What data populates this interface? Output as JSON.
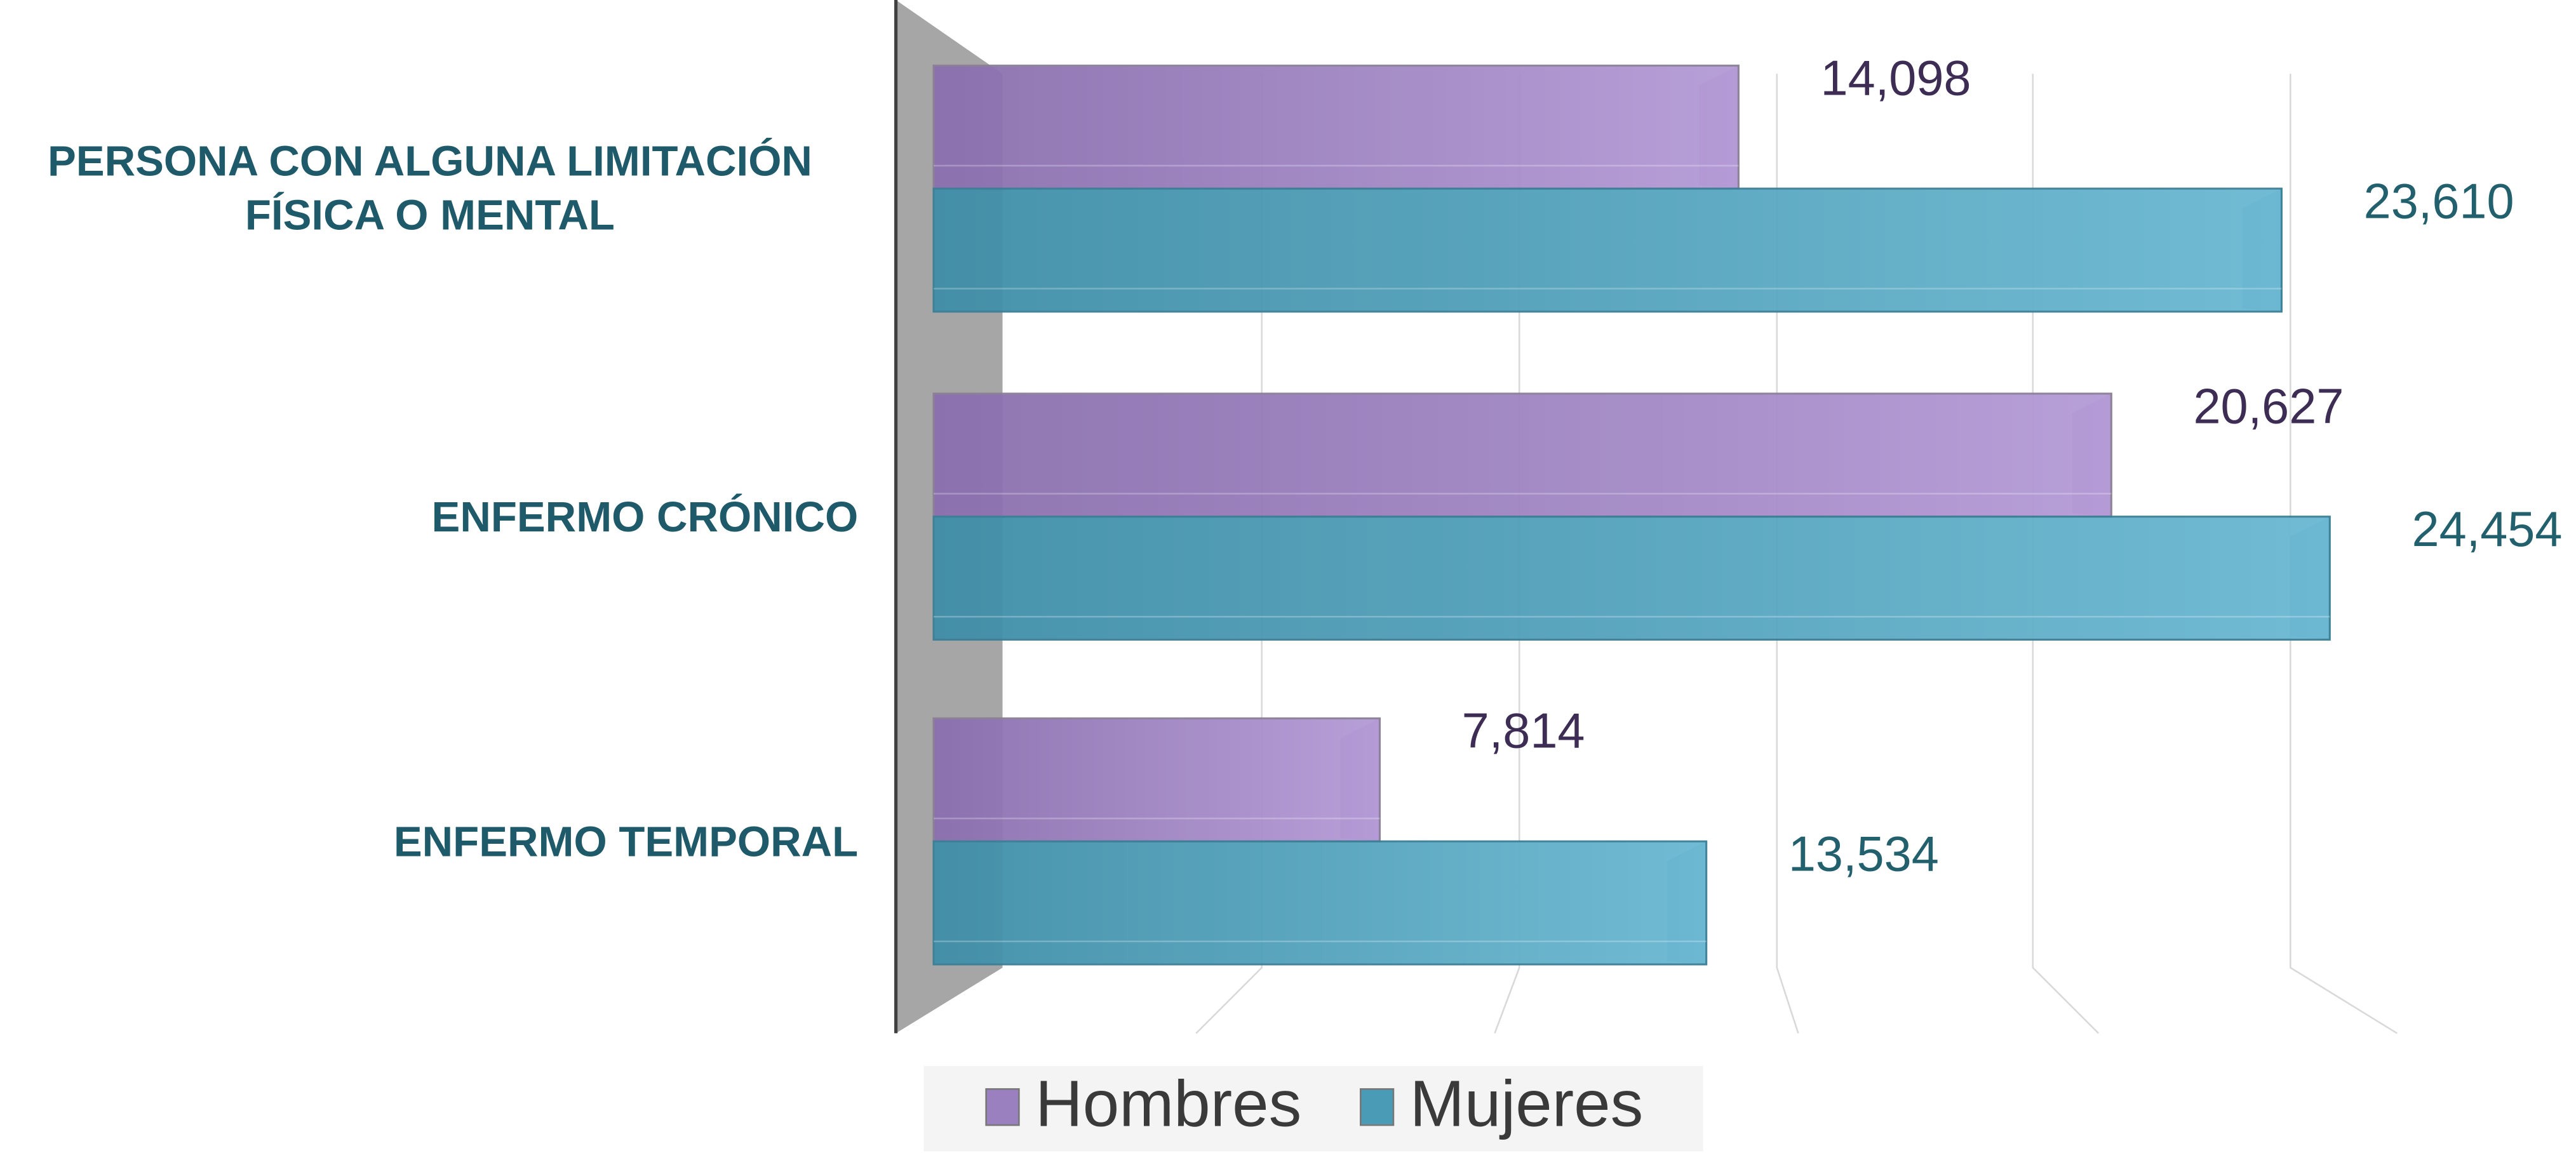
{
  "chart_data": {
    "type": "bar",
    "orientation": "horizontal",
    "categories": [
      "PERSONA CON ALGUNA LIMITACIÓN FÍSICA O MENTAL",
      "ENFERMO CRÓNICO",
      "ENFERMO TEMPORAL"
    ],
    "series": [
      {
        "name": "Hombres",
        "color": "#9b80bf",
        "values": [
          14098,
          20627,
          7814
        ],
        "value_labels": [
          "14,098",
          "20,627",
          "7,814"
        ]
      },
      {
        "name": "Mujeres",
        "color": "#4a9bb5",
        "values": [
          23610,
          24454,
          13534
        ],
        "value_labels": [
          "23,610",
          "24,454",
          "13,534"
        ]
      }
    ],
    "xlim": [
      0,
      25000
    ],
    "legend": "bottom"
  }
}
